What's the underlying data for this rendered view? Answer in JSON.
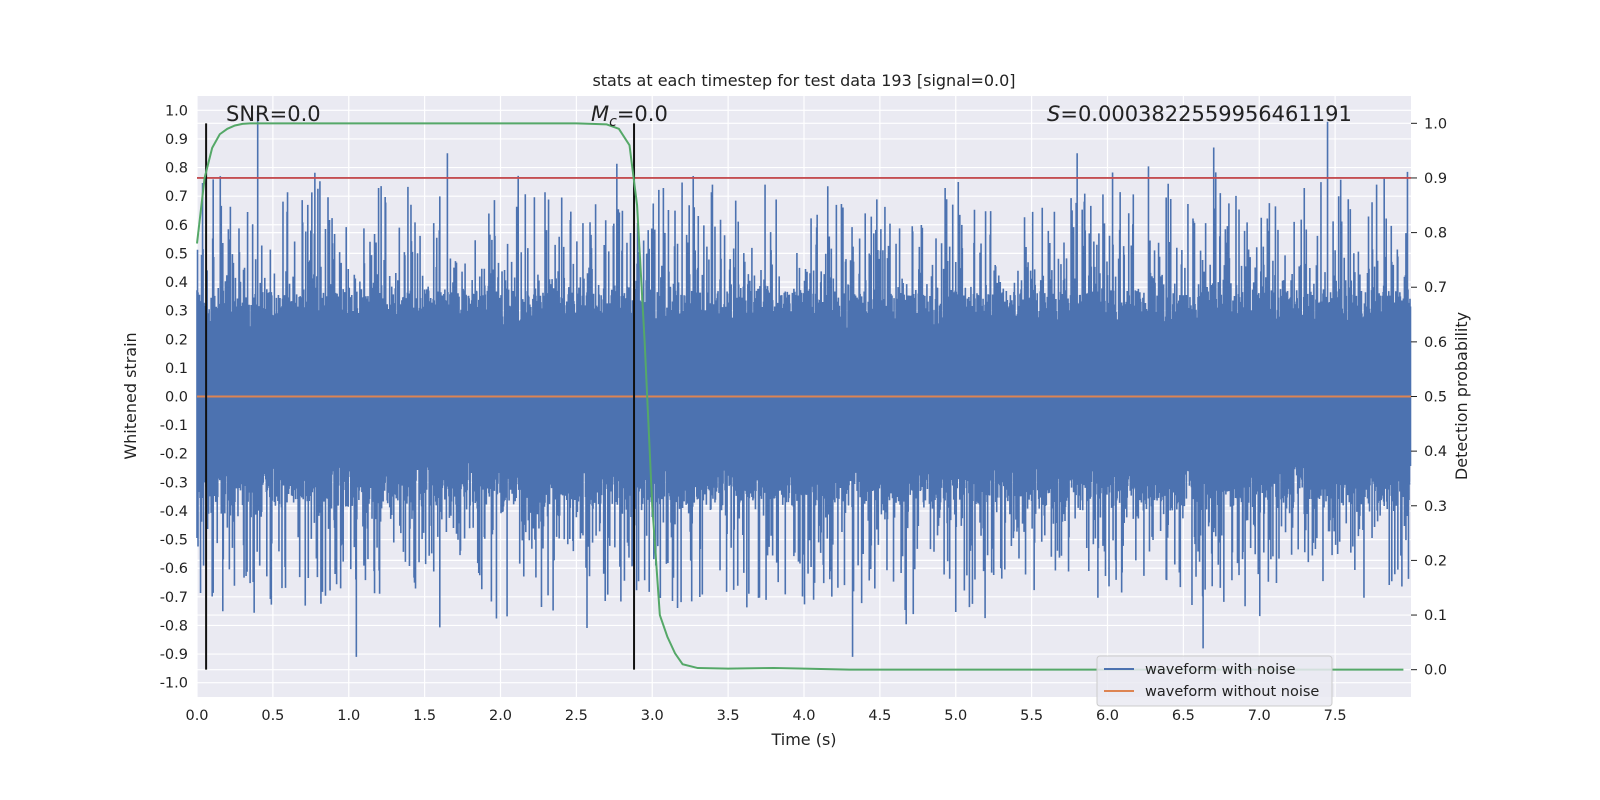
{
  "chart_data": {
    "type": "line",
    "title": "stats at each timestep for test data 193 [signal=0.0]",
    "xlabel": "Time (s)",
    "ylabel": "Whitened strain",
    "y2label": "Detection probability",
    "xlim": [
      0.0,
      8.0
    ],
    "ylim": [
      -1.05,
      1.05
    ],
    "y2lim": [
      -0.05,
      1.05
    ],
    "xticks": [
      "0.0",
      "0.5",
      "1.0",
      "1.5",
      "2.0",
      "2.5",
      "3.0",
      "3.5",
      "4.0",
      "4.5",
      "5.0",
      "5.5",
      "6.0",
      "6.5",
      "7.0",
      "7.5"
    ],
    "yticks": [
      "1.0",
      "0.9",
      "0.8",
      "0.7",
      "0.6",
      "0.5",
      "0.4",
      "0.3",
      "0.2",
      "0.1",
      "0.0",
      "-0.1",
      "-0.2",
      "-0.3",
      "-0.4",
      "-0.5",
      "-0.6",
      "-0.7",
      "-0.8",
      "-0.9",
      "-1.0"
    ],
    "y2ticks": [
      "1.0",
      "0.9",
      "0.8",
      "0.7",
      "0.6",
      "0.5",
      "0.4",
      "0.3",
      "0.2",
      "0.1",
      "0.0"
    ],
    "grid": true,
    "annotations": {
      "snr": "SNR=0.0",
      "mc_symbol": "M",
      "mc_sub": "c",
      "mc_value": "=0.0",
      "s_symbol": "S",
      "s_value": "=0.0003822559956461191"
    },
    "noise_envelope": {
      "seed": 193,
      "typical_peak": [
        0.42,
        -0.42
      ],
      "notable_peaks": [
        [
          0.4,
          1.0
        ],
        [
          1.65,
          0.85
        ],
        [
          5.8,
          0.85
        ],
        [
          6.7,
          0.87
        ],
        [
          7.45,
          0.96
        ],
        [
          1.05,
          -0.91
        ],
        [
          6.63,
          -0.88
        ],
        [
          4.32,
          -0.91
        ]
      ]
    },
    "threshold": 0.9,
    "vlines_x": [
      0.06,
      2.88
    ],
    "series": [
      {
        "name": "waveform with noise",
        "color": "#4c72b0",
        "axis": "left"
      },
      {
        "name": "waveform without noise",
        "color": "#dd8452",
        "axis": "left",
        "x": [
          0,
          8
        ],
        "y": [
          0.0,
          0.0
        ]
      },
      {
        "name": "detection probability",
        "color": "#55a868",
        "axis": "right",
        "x": [
          0.0,
          0.05,
          0.1,
          0.15,
          0.2,
          0.25,
          0.3,
          0.35,
          0.5,
          1.0,
          2.0,
          2.5,
          2.7,
          2.78,
          2.85,
          2.9,
          2.95,
          2.98,
          3.0,
          3.05,
          3.1,
          3.15,
          3.2,
          3.3,
          3.5,
          3.8,
          4.0,
          4.3,
          5.0,
          6.0,
          7.0,
          7.95
        ],
        "y": [
          0.78,
          0.9,
          0.955,
          0.98,
          0.99,
          0.996,
          0.999,
          1.0,
          1.0,
          1.0,
          1.0,
          1.0,
          0.998,
          0.99,
          0.96,
          0.85,
          0.6,
          0.42,
          0.3,
          0.1,
          0.06,
          0.03,
          0.01,
          0.003,
          0.002,
          0.003,
          0.002,
          0.0,
          0.0,
          0.0,
          0.0,
          0.0
        ]
      }
    ],
    "legend": {
      "location": "lower-right",
      "entries": [
        {
          "label": "waveform with noise",
          "color": "#4c72b0"
        },
        {
          "label": "waveform without noise",
          "color": "#dd8452"
        }
      ]
    },
    "colors": {
      "threshold": "#c44e52",
      "vline": "#111111",
      "background": "#eaeaf2",
      "grid": "#ffffff"
    }
  }
}
